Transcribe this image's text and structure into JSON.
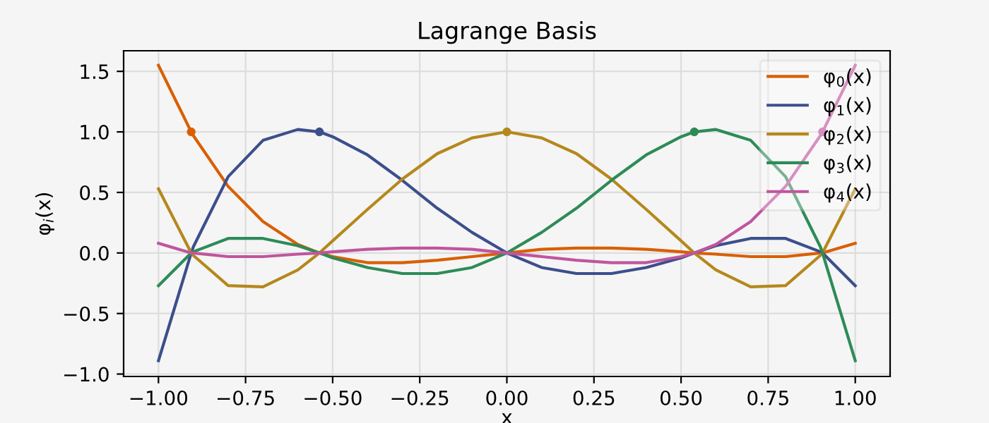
{
  "chart_data": {
    "type": "line",
    "title": "Lagrange Basis",
    "xlabel": "x",
    "ylabel": "φ$_{i}$(x)",
    "x": [
      -1.0,
      -0.906,
      -0.9,
      -0.8,
      -0.7,
      -0.6,
      -0.538,
      -0.5,
      -0.4,
      -0.3,
      -0.2,
      -0.1,
      0.0,
      0.1,
      0.2,
      0.3,
      0.4,
      0.5,
      0.538,
      0.6,
      0.7,
      0.8,
      0.9,
      0.906,
      1.0
    ],
    "series": [
      {
        "name": "φ$_{0}$(x)",
        "color": "#d95f02",
        "values": [
          1.55,
          1.0,
          0.97,
          0.55,
          0.26,
          0.07,
          0.0,
          -0.03,
          -0.08,
          -0.08,
          -0.06,
          -0.03,
          0.0,
          0.03,
          0.04,
          0.04,
          0.03,
          0.01,
          0.0,
          -0.01,
          -0.03,
          -0.03,
          0.0,
          0.0,
          0.08
        ]
      },
      {
        "name": "φ$_{1}$(x)",
        "color": "#3c4f8c",
        "values": [
          -0.89,
          0.0,
          0.05,
          0.63,
          0.93,
          1.02,
          1.0,
          0.96,
          0.81,
          0.6,
          0.37,
          0.17,
          0.0,
          -0.12,
          -0.17,
          -0.17,
          -0.12,
          -0.04,
          0.0,
          0.06,
          0.12,
          0.12,
          0.01,
          0.0,
          -0.27
        ]
      },
      {
        "name": "φ$_{2}$(x)",
        "color": "#b5881c",
        "values": [
          0.53,
          0.0,
          -0.02,
          -0.27,
          -0.28,
          -0.14,
          0.0,
          0.1,
          0.36,
          0.61,
          0.82,
          0.95,
          1.0,
          0.95,
          0.82,
          0.61,
          0.36,
          0.1,
          0.0,
          -0.14,
          -0.28,
          -0.27,
          -0.02,
          0.0,
          0.53
        ]
      },
      {
        "name": "φ$_{3}$(x)",
        "color": "#2e8b57",
        "values": [
          -0.27,
          0.0,
          0.01,
          0.12,
          0.12,
          0.06,
          0.0,
          -0.04,
          -0.12,
          -0.17,
          -0.17,
          -0.12,
          0.0,
          0.17,
          0.37,
          0.6,
          0.81,
          0.96,
          1.0,
          1.02,
          0.93,
          0.63,
          0.05,
          0.0,
          -0.89
        ]
      },
      {
        "name": "φ$_{4}$(x)",
        "color": "#c0559e",
        "values": [
          0.08,
          0.0,
          0.0,
          -0.03,
          -0.03,
          -0.01,
          0.0,
          0.01,
          0.03,
          0.04,
          0.04,
          0.03,
          0.0,
          -0.03,
          -0.06,
          -0.08,
          -0.08,
          -0.03,
          0.0,
          0.07,
          0.26,
          0.55,
          0.97,
          1.0,
          1.55
        ]
      },
      {
        "type": "scatter",
        "x": [
          -0.906,
          -0.538,
          0.0,
          0.538,
          0.906
        ],
        "colors": [
          "#d95f02",
          "#3c4f8c",
          "#b5881c",
          "#2e8b57",
          "#c0559e"
        ],
        "values": [
          1.0,
          1.0,
          1.0,
          1.0,
          1.0
        ]
      }
    ],
    "xlim": [
      -1.1,
      1.1
    ],
    "ylim": [
      -1.02,
      1.67
    ],
    "xticks": [
      {
        "value": -1.0,
        "label": "−1.00"
      },
      {
        "value": -0.75,
        "label": "−0.75"
      },
      {
        "value": -0.5,
        "label": "−0.50"
      },
      {
        "value": -0.25,
        "label": "−0.25"
      },
      {
        "value": 0.0,
        "label": "0.00"
      },
      {
        "value": 0.25,
        "label": "0.25"
      },
      {
        "value": 0.5,
        "label": "0.50"
      },
      {
        "value": 0.75,
        "label": "0.75"
      },
      {
        "value": 1.0,
        "label": "1.00"
      }
    ],
    "yticks": [
      {
        "value": -1.0,
        "label": "−1.0"
      },
      {
        "value": -0.5,
        "label": "−0.5"
      },
      {
        "value": 0.0,
        "label": "0.0"
      },
      {
        "value": 0.5,
        "label": "0.5"
      },
      {
        "value": 1.0,
        "label": "1.0"
      },
      {
        "value": 1.5,
        "label": "1.5"
      }
    ],
    "grid": true,
    "legend": "top right"
  }
}
